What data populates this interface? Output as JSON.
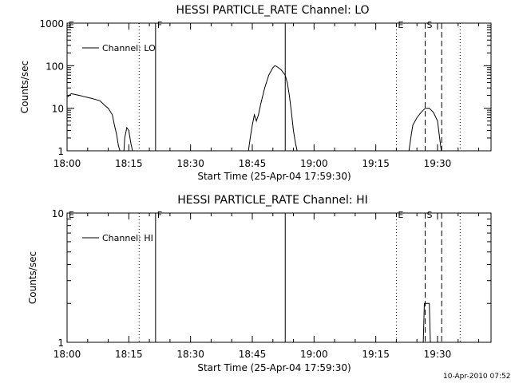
{
  "footer_date": "10-Apr-2010 07:52",
  "chart_data": [
    {
      "type": "line",
      "title": "HESSI PARTICLE_RATE Channel: LO",
      "xlabel": "Start Time (25-Apr-04 17:59:30)",
      "ylabel": "Counts/sec",
      "yscale": "log",
      "xlim": [
        "18:00",
        "19:43"
      ],
      "ylim": [
        1,
        1000
      ],
      "xticks": [
        "18:00",
        "18:15",
        "18:30",
        "18:45",
        "19:00",
        "19:15",
        "19:30"
      ],
      "yticks": [
        "1",
        "10",
        "100",
        "1000"
      ],
      "legend": {
        "entries": [
          "Channel: LO"
        ],
        "placement": "top-left"
      },
      "markers": [
        {
          "label": "E",
          "time": "18:00",
          "style": "none"
        },
        {
          "label": "",
          "time": "18:17.5",
          "style": "dotted"
        },
        {
          "label": "F",
          "time": "18:21.5",
          "style": "solid"
        },
        {
          "label": "",
          "time": "18:53",
          "style": "solid"
        },
        {
          "label": "E",
          "time": "19:20",
          "style": "dotted"
        },
        {
          "label": "S",
          "time": "19:27",
          "style": "dashed"
        },
        {
          "label": "",
          "time": "19:31",
          "style": "dashed"
        },
        {
          "label": "",
          "time": "19:35.5",
          "style": "dotted"
        }
      ],
      "series": [
        {
          "name": "Channel: LO",
          "segments": [
            [
              [
                "18:00",
                18
              ],
              [
                "18:00.5",
                20
              ],
              [
                "18:01",
                22
              ],
              [
                "18:02",
                21
              ],
              [
                "18:03",
                20
              ],
              [
                "18:04",
                19
              ],
              [
                "18:05",
                18
              ],
              [
                "18:06",
                17
              ],
              [
                "18:07",
                16
              ],
              [
                "18:08",
                15
              ],
              [
                "18:09",
                12
              ],
              [
                "18:10",
                10
              ],
              [
                "18:11",
                7
              ],
              [
                "18:11.5",
                4
              ],
              [
                "18:12",
                2.5
              ],
              [
                "18:12.5",
                1.3
              ],
              [
                "18:13",
                0.9
              ]
            ],
            [
              "gap"
            ],
            [
              [
                "18:13.8",
                0.9
              ],
              [
                "18:14",
                2
              ],
              [
                "18:14.5",
                3.5
              ],
              [
                "18:15",
                3
              ],
              [
                "18:15.5",
                1.5
              ],
              [
                "18:16",
                0.9
              ]
            ],
            [
              "gap"
            ],
            [
              [
                "18:44",
                0.9
              ],
              [
                "18:44.5",
                2
              ],
              [
                "18:45",
                4
              ],
              [
                "18:45.5",
                7
              ],
              [
                "18:46",
                5
              ],
              [
                "18:46.5",
                7
              ],
              [
                "18:47",
                12
              ],
              [
                "18:48",
                30
              ],
              [
                "18:49",
                60
              ],
              [
                "18:50",
                90
              ],
              [
                "18:50.5",
                100
              ],
              [
                "18:51",
                95
              ],
              [
                "18:52",
                80
              ],
              [
                "18:53",
                60
              ],
              [
                "18:53.5",
                40
              ],
              [
                "18:54",
                20
              ],
              [
                "18:54.5",
                8
              ],
              [
                "18:55",
                3
              ],
              [
                "18:55.5",
                1.5
              ],
              [
                "18:56",
                0.9
              ]
            ],
            [
              "gap"
            ],
            [
              [
                "19:23",
                0.9
              ],
              [
                "19:23.5",
                2
              ],
              [
                "19:24",
                4
              ],
              [
                "19:25",
                6
              ],
              [
                "19:26",
                8
              ],
              [
                "19:27",
                10
              ],
              [
                "19:28",
                10
              ],
              [
                "19:29",
                8
              ],
              [
                "19:30",
                5
              ],
              [
                "19:30.5",
                2
              ],
              [
                "19:31",
                0.9
              ]
            ]
          ]
        }
      ]
    },
    {
      "type": "line",
      "title": "HESSI PARTICLE_RATE Channel: HI",
      "xlabel": "Start Time (25-Apr-04 17:59:30)",
      "ylabel": "Counts/sec",
      "yscale": "log",
      "xlim": [
        "18:00",
        "19:43"
      ],
      "ylim": [
        1,
        10
      ],
      "xticks": [
        "18:00",
        "18:15",
        "18:30",
        "18:45",
        "19:00",
        "19:15",
        "19:30"
      ],
      "yticks": [
        "1",
        "10"
      ],
      "legend": {
        "entries": [
          "Channel: HI"
        ],
        "placement": "top-left"
      },
      "markers": [
        {
          "label": "E",
          "time": "18:00",
          "style": "none"
        },
        {
          "label": "",
          "time": "18:17.5",
          "style": "dotted"
        },
        {
          "label": "F",
          "time": "18:21.5",
          "style": "solid"
        },
        {
          "label": "",
          "time": "18:53",
          "style": "solid"
        },
        {
          "label": "E",
          "time": "19:20",
          "style": "dotted"
        },
        {
          "label": "S",
          "time": "19:27",
          "style": "dashed"
        },
        {
          "label": "",
          "time": "19:31",
          "style": "dashed"
        },
        {
          "label": "",
          "time": "19:35.5",
          "style": "dotted"
        }
      ],
      "series": [
        {
          "name": "Channel: HI",
          "segments": [
            [
              [
                "19:26.5",
                0.9
              ],
              [
                "19:26.8",
                2
              ],
              [
                "19:28",
                2
              ],
              [
                "19:28.3",
                0.9
              ]
            ]
          ]
        }
      ]
    }
  ]
}
